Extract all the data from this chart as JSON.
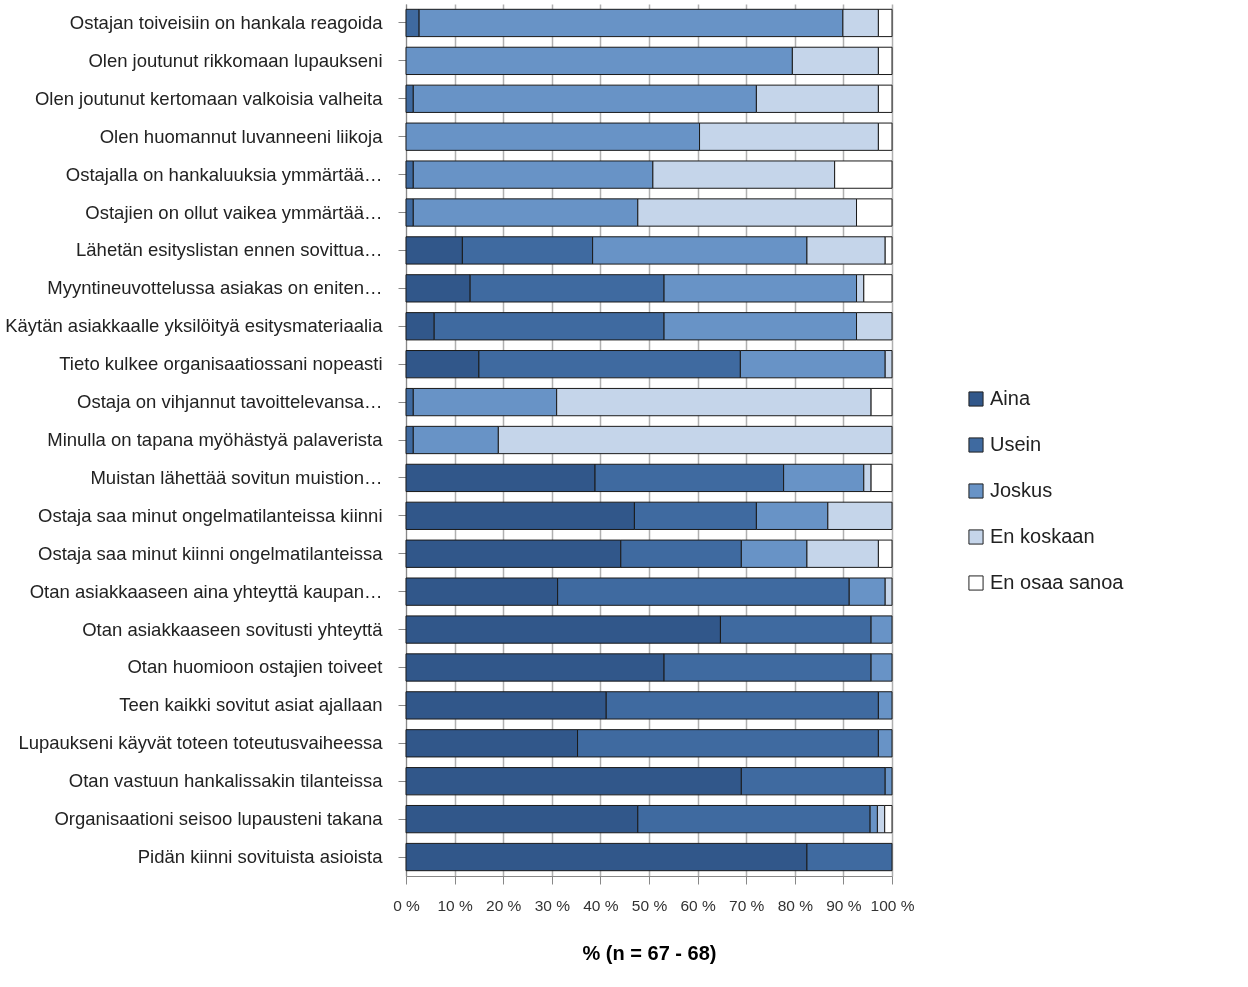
{
  "chart_data": {
    "type": "bar",
    "orientation": "horizontal",
    "stacked": true,
    "xlabel": "% (n = 67 - 68)",
    "categories": [
      "Ostajan toiveisiin on hankala reagoida",
      "Olen joutunut rikkomaan lupaukseni",
      "Olen joutunut kertomaan valkoisia valheita",
      "Olen huomannut luvanneeni liikoja",
      "Ostajalla on hankaluuksia ymmärtää…",
      "Ostajien on ollut vaikea ymmärtää…",
      "Lähetän esityslistan ennen sovittua…",
      "Myyntineuvottelussa asiakas on eniten…",
      "Käytän asiakkaalle yksilöityä esitysmateriaalia",
      "Tieto kulkee organisaatiossani nopeasti",
      "Ostaja on vihjannut tavoittelevansa…",
      "Minulla on tapana myöhästyä palaverista",
      "Muistan lähettää sovitun muistion…",
      "Ostaja saa minut ongelmatilanteissa kiinni",
      "Ostaja saa minut kiinni ongelmatilanteissa",
      "Otan asiakkaaseen aina yhteyttä kaupan…",
      "Otan asiakkaaseen sovitusti yhteyttä",
      "Otan huomioon ostajien toiveet",
      "Teen kaikki sovitut asiat ajallaan",
      "Lupaukseni käyvät toteen toteutusvaiheessa",
      "Otan vastuun hankalissakin tilanteissa",
      "Organisaationi seisoo lupausteni takana",
      "Pidän kiinni sovituista asioista"
    ],
    "series": [
      {
        "name": "Aina",
        "color": "#31578a",
        "values": [
          null,
          null,
          null,
          null,
          null,
          null,
          11.6,
          13.2,
          5.8,
          15.0,
          null,
          null,
          38.9,
          47.0,
          44.2,
          31.2,
          64.7,
          53.1,
          41.2,
          35.3,
          69.0,
          47.7,
          82.5
        ]
      },
      {
        "name": "Usein",
        "color": "#3f6aa0",
        "values": [
          2.7,
          null,
          1.5,
          null,
          1.5,
          1.5,
          26.8,
          39.9,
          47.3,
          53.8,
          1.5,
          1.5,
          38.8,
          25.1,
          24.8,
          60.0,
          31.0,
          42.6,
          56.0,
          61.9,
          29.6,
          47.8,
          17.5
        ]
      },
      {
        "name": "Joskus",
        "color": "#6893c6",
        "values": [
          87.2,
          79.5,
          70.6,
          60.4,
          49.3,
          46.2,
          44.1,
          39.6,
          39.6,
          29.8,
          29.5,
          17.5,
          16.5,
          14.7,
          13.5,
          7.4,
          4.3,
          4.3,
          2.8,
          2.8,
          1.4,
          1.5,
          null
        ]
      },
      {
        "name": "En koskaan",
        "color": "#c5d5ea",
        "values": [
          7.3,
          17.7,
          25.1,
          36.8,
          37.4,
          45.0,
          16.1,
          1.5,
          7.3,
          1.4,
          64.7,
          81.0,
          1.5,
          13.2,
          14.7,
          1.4,
          null,
          null,
          null,
          null,
          null,
          1.5,
          null
        ]
      },
      {
        "name": "En osaa sanoa",
        "color": "#ffffff",
        "values": [
          2.8,
          2.8,
          2.8,
          2.8,
          11.8,
          7.3,
          1.4,
          5.8,
          null,
          null,
          4.3,
          null,
          4.3,
          null,
          2.8,
          null,
          null,
          null,
          null,
          null,
          null,
          1.5,
          null
        ]
      }
    ],
    "xlim": [
      0,
      100
    ],
    "xticks": [
      {
        "value": 0,
        "label": "0 %"
      },
      {
        "value": 10,
        "label": "10 %"
      },
      {
        "value": 20,
        "label": "20 %"
      },
      {
        "value": 30,
        "label": "30 %"
      },
      {
        "value": 40,
        "label": "40 %"
      },
      {
        "value": 50,
        "label": "50 %"
      },
      {
        "value": 60,
        "label": "60 %"
      },
      {
        "value": 70,
        "label": "70 %"
      },
      {
        "value": 80,
        "label": "80 %"
      },
      {
        "value": 90,
        "label": "90 %"
      },
      {
        "value": 100,
        "label": "100 %"
      }
    ],
    "grid": "x",
    "legend": "right"
  }
}
